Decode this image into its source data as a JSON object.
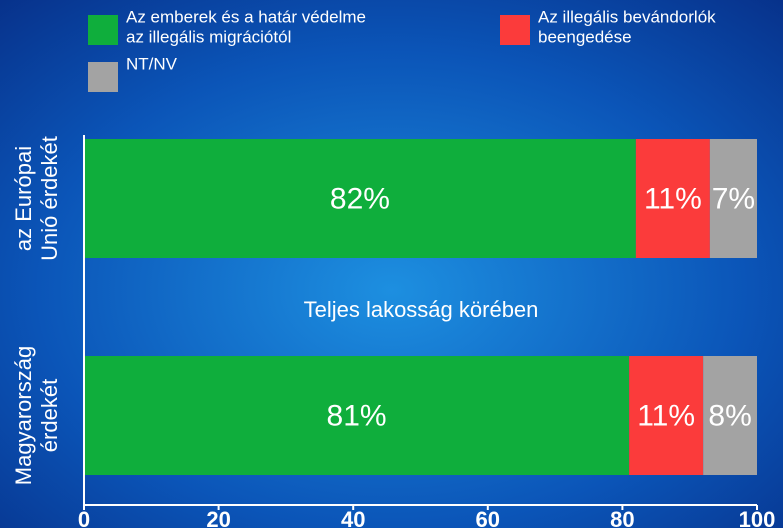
{
  "chart_data": {
    "type": "stacked-barh",
    "categories": [
      [
        "az Európai",
        "Unió érdekét"
      ],
      [
        "Magyarország",
        "érdekét"
      ]
    ],
    "series": [
      {
        "name": [
          "Az emberek és a határ védelme",
          "az illegális migrációtól"
        ],
        "color": "#0fae3c",
        "values": [
          82,
          81
        ],
        "value_labels": [
          "82%",
          "81%"
        ]
      },
      {
        "name": [
          "Az illegális bevándorlók",
          "beengedése"
        ],
        "color": "#fb3b3b",
        "values": [
          11,
          11
        ],
        "value_labels": [
          "11%",
          "11%"
        ]
      },
      {
        "name": [
          "NT/NV"
        ],
        "color": "#a3a3a3",
        "values": [
          7,
          8
        ],
        "value_labels": [
          "7%",
          "8%"
        ]
      }
    ],
    "annotation": "Teljes lakosság körében",
    "xlim": [
      0,
      100
    ],
    "xticks": [
      0,
      20,
      40,
      60,
      80,
      100
    ]
  }
}
